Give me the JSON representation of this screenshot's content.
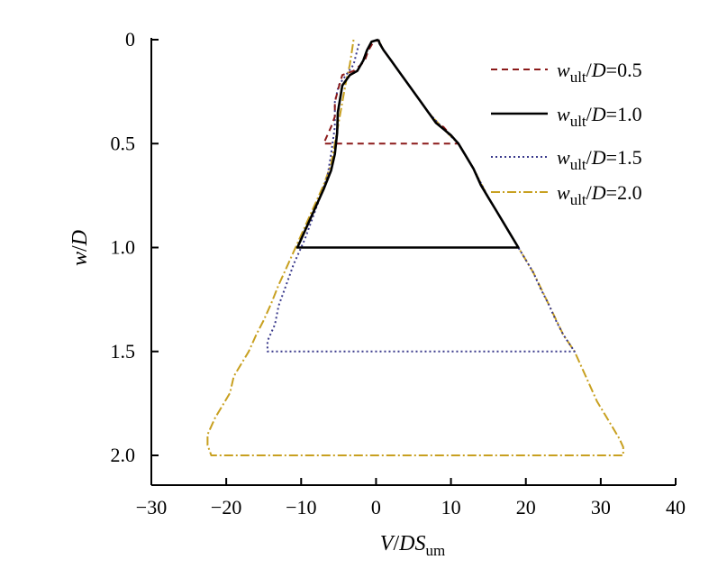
{
  "chart_data": {
    "type": "line",
    "xlabel": {
      "v": "V",
      "sep": "/",
      "d": "DS",
      "sub": "um"
    },
    "ylabel": {
      "w": "w",
      "sep": "/",
      "d": "D"
    },
    "xlim": [
      -30,
      40
    ],
    "ylim": [
      0,
      2.1
    ],
    "y_inverted": true,
    "xticks": [
      -30,
      -20,
      -10,
      0,
      10,
      20,
      30,
      40
    ],
    "xtick_labels": [
      "−30",
      "−20",
      "−10",
      "0",
      "10",
      "20",
      "30",
      "40"
    ],
    "yticks": [
      0,
      0.5,
      1.0,
      1.5,
      2.0
    ],
    "ytick_labels": [
      "0",
      "0.5",
      "1.0",
      "1.5",
      "2.0"
    ],
    "grid": false,
    "legend_position": "top-right",
    "series": [
      {
        "name": "w_ult/D=0.5",
        "label_main": "w",
        "label_sub": "ult",
        "label_tail": "/D=0.5",
        "color": "#8b1a1a",
        "dash": "7,5",
        "points": [
          [
            0.3,
            0
          ],
          [
            0.5,
            0.02
          ],
          [
            1,
            0.05
          ],
          [
            2,
            0.1
          ],
          [
            3,
            0.15
          ],
          [
            4,
            0.2
          ],
          [
            5,
            0.25
          ],
          [
            6,
            0.3
          ],
          [
            7,
            0.35
          ],
          [
            8,
            0.4
          ],
          [
            9,
            0.42
          ],
          [
            10,
            0.46
          ],
          [
            11,
            0.5
          ],
          [
            7,
            0.5
          ],
          [
            3,
            0.5
          ],
          [
            -1,
            0.5
          ],
          [
            -5,
            0.5
          ],
          [
            -7,
            0.5
          ],
          [
            -6,
            0.42
          ],
          [
            -5.5,
            0.37
          ],
          [
            -5.5,
            0.3
          ],
          [
            -5,
            0.23
          ],
          [
            -4.5,
            0.17
          ],
          [
            -3,
            0.15
          ],
          [
            -2,
            0.12
          ],
          [
            -1.5,
            0.1
          ],
          [
            -1,
            0.05
          ],
          [
            -0.5,
            0.02
          ],
          [
            0.3,
            0
          ]
        ]
      },
      {
        "name": "w_ult/D=1.0",
        "label_main": "w",
        "label_sub": "ult",
        "label_tail": "/D=1.0",
        "color": "#000000",
        "dash": "",
        "points": [
          [
            0.3,
            0
          ],
          [
            0.5,
            0.02
          ],
          [
            1,
            0.05
          ],
          [
            2,
            0.1
          ],
          [
            3,
            0.15
          ],
          [
            4,
            0.2
          ],
          [
            5,
            0.25
          ],
          [
            6,
            0.3
          ],
          [
            7,
            0.35
          ],
          [
            8,
            0.4
          ],
          [
            9,
            0.43
          ],
          [
            10,
            0.46
          ],
          [
            11,
            0.5
          ],
          [
            12,
            0.56
          ],
          [
            13,
            0.62
          ],
          [
            14,
            0.7
          ],
          [
            15,
            0.76
          ],
          [
            16,
            0.82
          ],
          [
            17,
            0.88
          ],
          [
            18,
            0.94
          ],
          [
            19,
            1.0
          ],
          [
            10,
            1.0
          ],
          [
            2,
            1.0
          ],
          [
            -5,
            1.0
          ],
          [
            -10.5,
            1.0
          ],
          [
            -10,
            0.96
          ],
          [
            -9,
            0.88
          ],
          [
            -8,
            0.8
          ],
          [
            -7,
            0.72
          ],
          [
            -6,
            0.63
          ],
          [
            -5.5,
            0.55
          ],
          [
            -5.2,
            0.45
          ],
          [
            -5.1,
            0.35
          ],
          [
            -4.5,
            0.22
          ],
          [
            -3.5,
            0.17
          ],
          [
            -2.5,
            0.15
          ],
          [
            -1.7,
            0.1
          ],
          [
            -1.2,
            0.05
          ],
          [
            -0.6,
            0.01
          ],
          [
            0.3,
            0
          ]
        ]
      },
      {
        "name": "w_ult/D=1.5",
        "label_main": "w",
        "label_sub": "ult",
        "label_tail": "/D=1.5",
        "color": "#3a3a8c",
        "dash": "2,3",
        "points": [
          [
            0.3,
            0
          ],
          [
            1,
            0.05
          ],
          [
            3,
            0.15
          ],
          [
            5,
            0.25
          ],
          [
            7,
            0.35
          ],
          [
            9,
            0.43
          ],
          [
            11,
            0.5
          ],
          [
            13,
            0.62
          ],
          [
            15,
            0.76
          ],
          [
            17,
            0.88
          ],
          [
            19,
            1.0
          ],
          [
            20,
            1.06
          ],
          [
            21,
            1.12
          ],
          [
            22,
            1.2
          ],
          [
            23,
            1.27
          ],
          [
            24,
            1.35
          ],
          [
            25,
            1.42
          ],
          [
            26.5,
            1.5
          ],
          [
            20,
            1.5
          ],
          [
            10,
            1.5
          ],
          [
            0,
            1.5
          ],
          [
            -10,
            1.5
          ],
          [
            -14.5,
            1.5
          ],
          [
            -14.5,
            1.45
          ],
          [
            -13.5,
            1.37
          ],
          [
            -13,
            1.28
          ],
          [
            -12,
            1.18
          ],
          [
            -11,
            1.08
          ],
          [
            -9.5,
            0.96
          ],
          [
            -8.5,
            0.86
          ],
          [
            -7.5,
            0.76
          ],
          [
            -6.5,
            0.66
          ],
          [
            -6,
            0.55
          ],
          [
            -5.5,
            0.42
          ],
          [
            -5.5,
            0.3
          ],
          [
            -5,
            0.22
          ],
          [
            -4,
            0.17
          ],
          [
            -3,
            0.12
          ],
          [
            -2.5,
            0.05
          ],
          [
            -2.2,
            0.01
          ]
        ]
      },
      {
        "name": "w_ult/D=2.0",
        "label_main": "w",
        "label_sub": "ult",
        "label_tail": "/D=2.0",
        "color": "#c8a020",
        "dash": "10,3,2,3",
        "points": [
          [
            0.3,
            0
          ],
          [
            1,
            0.05
          ],
          [
            3,
            0.15
          ],
          [
            5,
            0.25
          ],
          [
            7,
            0.35
          ],
          [
            9,
            0.43
          ],
          [
            11,
            0.5
          ],
          [
            13,
            0.62
          ],
          [
            15,
            0.76
          ],
          [
            17,
            0.88
          ],
          [
            19,
            1.0
          ],
          [
            21,
            1.12
          ],
          [
            23,
            1.27
          ],
          [
            25,
            1.42
          ],
          [
            26.5,
            1.5
          ],
          [
            27.5,
            1.58
          ],
          [
            28.5,
            1.66
          ],
          [
            29.5,
            1.74
          ],
          [
            30.5,
            1.8
          ],
          [
            31.5,
            1.86
          ],
          [
            32.5,
            1.92
          ],
          [
            33,
            1.96
          ],
          [
            33,
            2.0
          ],
          [
            20,
            2.0
          ],
          [
            5,
            2.0
          ],
          [
            -10,
            2.0
          ],
          [
            -22,
            2.0
          ],
          [
            -22.5,
            1.95
          ],
          [
            -22.5,
            1.9
          ],
          [
            -21.5,
            1.82
          ],
          [
            -20.5,
            1.76
          ],
          [
            -19.5,
            1.7
          ],
          [
            -19,
            1.62
          ],
          [
            -18,
            1.56
          ],
          [
            -17,
            1.5
          ],
          [
            -16,
            1.42
          ],
          [
            -15,
            1.35
          ],
          [
            -14,
            1.27
          ],
          [
            -13,
            1.18
          ],
          [
            -12,
            1.1
          ],
          [
            -11,
            1.02
          ],
          [
            -10,
            0.94
          ],
          [
            -9,
            0.86
          ],
          [
            -8,
            0.78
          ],
          [
            -7,
            0.7
          ],
          [
            -6,
            0.6
          ],
          [
            -5.5,
            0.5
          ],
          [
            -5,
            0.4
          ],
          [
            -4.5,
            0.3
          ],
          [
            -4,
            0.2
          ],
          [
            -3.5,
            0.12
          ],
          [
            -3.2,
            0.05
          ],
          [
            -3,
            0
          ]
        ]
      }
    ]
  }
}
